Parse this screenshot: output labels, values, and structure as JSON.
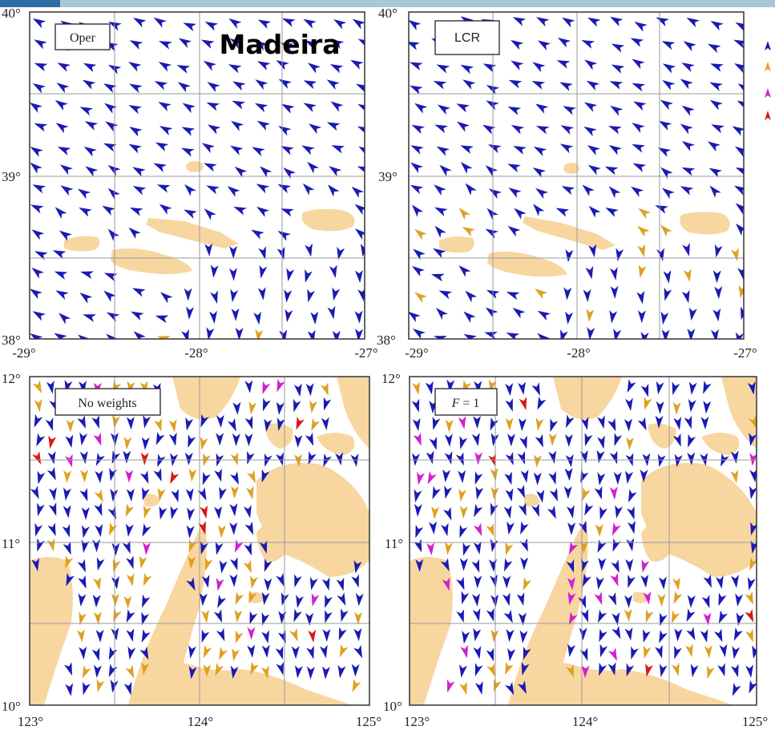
{
  "title": "Madeira",
  "colors": {
    "land": "#f8d6a0",
    "grid": "#9a9a9a",
    "frame": "#333333",
    "arrow_blue": "#1a1ab4",
    "arrow_orange": "#e0a020",
    "arrow_magenta": "#d020d0",
    "arrow_red": "#d81818"
  },
  "legend": {
    "icons": [
      "blue-arrow-icon",
      "orange-arrow-icon",
      "magenta-arrow-icon",
      "red-arrow-icon"
    ]
  },
  "panels": [
    {
      "id": "oper",
      "label": "Oper",
      "y_ticks": [
        "40°",
        "39°",
        "38°"
      ],
      "x_ticks": [
        "-29°",
        "-28°",
        "-27°"
      ]
    },
    {
      "id": "lcr",
      "label": "LCR",
      "y_ticks": [
        "40°",
        "39°",
        "38°"
      ],
      "x_ticks": [
        "-29°",
        "-28°",
        "-27°"
      ]
    },
    {
      "id": "no-weights",
      "label": "No weights",
      "y_ticks": [
        "12°",
        "11°",
        "10°"
      ],
      "x_ticks": [
        "123°",
        "124°",
        "125°"
      ]
    },
    {
      "id": "f1",
      "label_var": "F",
      "label_rest": " = 1",
      "y_ticks": [
        "12°",
        "11°",
        "10°"
      ],
      "x_ticks": [
        "123°",
        "124°",
        "125°"
      ]
    }
  ]
}
